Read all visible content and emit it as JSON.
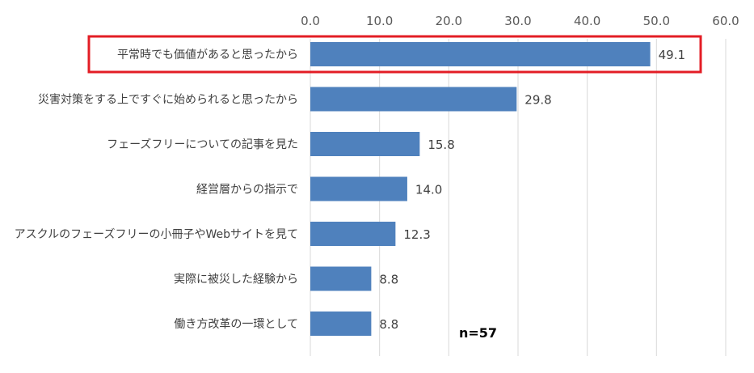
{
  "chart_data": {
    "type": "bar",
    "orientation": "horizontal",
    "categories": [
      "平常時でも価値があると思ったから",
      "災害対策をする上ですぐに始められると思ったから",
      "フェーズフリーについての記事を見た",
      "経営層からの指示で",
      "アスクルのフェーズフリーの小冊子やWebサイトを見て",
      "実際に被災した経験から",
      "働き方改革の一環として"
    ],
    "values": [
      49.1,
      29.8,
      15.8,
      14.0,
      12.3,
      8.8,
      8.8
    ],
    "value_labels": [
      "49.1",
      "29.8",
      "15.8",
      "14.0",
      "12.3",
      "8.8",
      "8.8"
    ],
    "xlim": [
      0,
      60
    ],
    "x_ticks": [
      "0.0",
      "10.0",
      "20.0",
      "30.0",
      "40.0",
      "50.0",
      "60.0"
    ],
    "x_axis_position": "top",
    "grid": true,
    "annotation": "n=57",
    "highlighted_category": "平常時でも価値があると思ったから",
    "colors": {
      "bar": "#4f81bd",
      "grid": "#d9d9d9",
      "highlight": "#e31d25"
    }
  }
}
